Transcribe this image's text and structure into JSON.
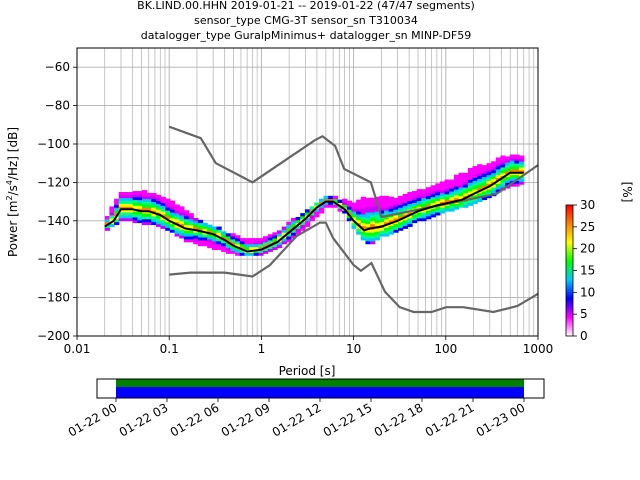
{
  "chart_data": {
    "type": "heatmap",
    "title_lines": [
      "BK.LIND.00.HHN   2019-01-21 -- 2019-01-22  (47/47 segments)",
      "sensor_type CMG-3T sensor_sn T310034",
      "datalogger_type GuralpMinimus+ datalogger_sn MINP-DF59"
    ],
    "xlabel": "Period [s]",
    "ylabel_parts": [
      "Power [m",
      "2",
      "/s",
      "4",
      "/Hz] [dB]"
    ],
    "xscale": "log",
    "xlim": [
      0.01,
      1000
    ],
    "ylim": [
      -200,
      -50
    ],
    "xtick_values": [
      0.01,
      0.1,
      1,
      10,
      100,
      1000
    ],
    "xtick_labels": [
      "0.01",
      "0.1",
      "1",
      "10",
      "100",
      "1000"
    ],
    "ytick_values": [
      -200,
      -180,
      -160,
      -140,
      -120,
      -100,
      -80,
      -60
    ],
    "ytick_labels": [
      "−200",
      "−180",
      "−160",
      "−140",
      "−120",
      "−100",
      "−80",
      "−60"
    ],
    "grid": true,
    "colorbar": {
      "label": "[%]",
      "range": [
        0,
        30
      ],
      "tick_values": [
        0,
        5,
        10,
        15,
        20,
        25,
        30
      ],
      "tick_labels": [
        "0",
        "5",
        "10",
        "15",
        "20",
        "25",
        "30"
      ],
      "colors": [
        "#ffffff",
        "#ff00ff",
        "#0000ff",
        "#00c8ff",
        "#00ff00",
        "#ffff00",
        "#ff8000",
        "#ff0000"
      ]
    },
    "high_noise_model": [
      [
        0.1,
        -91
      ],
      [
        0.22,
        -97
      ],
      [
        0.32,
        -110
      ],
      [
        0.8,
        -120
      ],
      [
        3.8,
        -98
      ],
      [
        4.6,
        -96
      ],
      [
        6.3,
        -101
      ],
      [
        7.9,
        -113
      ],
      [
        15.4,
        -120
      ],
      [
        20,
        -138
      ],
      [
        354.8,
        -126
      ],
      [
        1000,
        -111
      ]
    ],
    "low_noise_model": [
      [
        0.1,
        -168
      ],
      [
        0.17,
        -167
      ],
      [
        0.4,
        -167
      ],
      [
        0.8,
        -169
      ],
      [
        1.24,
        -163
      ],
      [
        2.4,
        -148
      ],
      [
        4.3,
        -141
      ],
      [
        5,
        -141
      ],
      [
        6,
        -149
      ],
      [
        10,
        -163
      ],
      [
        12,
        -166
      ],
      [
        15.6,
        -162
      ],
      [
        21.9,
        -177
      ],
      [
        31.6,
        -185
      ],
      [
        45,
        -187.5
      ],
      [
        70,
        -187.5
      ],
      [
        101,
        -185
      ],
      [
        154,
        -185
      ],
      [
        328,
        -187.5
      ],
      [
        600,
        -184.4
      ],
      [
        1000,
        -178
      ]
    ],
    "mode_curve": [
      [
        0.02,
        -143
      ],
      [
        0.025,
        -140
      ],
      [
        0.03,
        -134
      ],
      [
        0.04,
        -134
      ],
      [
        0.05,
        -135
      ],
      [
        0.06,
        -135
      ],
      [
        0.08,
        -137
      ],
      [
        0.1,
        -140
      ],
      [
        0.15,
        -144
      ],
      [
        0.2,
        -145
      ],
      [
        0.3,
        -147
      ],
      [
        0.4,
        -150
      ],
      [
        0.5,
        -153
      ],
      [
        0.7,
        -156
      ],
      [
        1.0,
        -155
      ],
      [
        1.5,
        -151
      ],
      [
        2,
        -146
      ],
      [
        3,
        -139
      ],
      [
        4,
        -133
      ],
      [
        5,
        -130
      ],
      [
        6,
        -130
      ],
      [
        8,
        -134
      ],
      [
        10,
        -140
      ],
      [
        13,
        -145
      ],
      [
        15,
        -144
      ],
      [
        20,
        -143
      ],
      [
        30,
        -140
      ],
      [
        50,
        -135
      ],
      [
        80,
        -132
      ],
      [
        100,
        -131
      ],
      [
        150,
        -129
      ],
      [
        200,
        -126
      ],
      [
        300,
        -122
      ],
      [
        400,
        -118
      ],
      [
        500,
        -115
      ],
      [
        700,
        -115
      ]
    ],
    "density_band": [
      [
        0.02,
        -145,
        -140
      ],
      [
        0.03,
        -140,
        -125
      ],
      [
        0.04,
        -140,
        -125
      ],
      [
        0.05,
        -141,
        -125
      ],
      [
        0.07,
        -142,
        -126
      ],
      [
        0.1,
        -145,
        -130
      ],
      [
        0.15,
        -150,
        -135
      ],
      [
        0.2,
        -152,
        -140
      ],
      [
        0.3,
        -154,
        -143
      ],
      [
        0.5,
        -157,
        -148
      ],
      [
        0.7,
        -158,
        -150
      ],
      [
        1.0,
        -157,
        -150
      ],
      [
        1.5,
        -154,
        -146
      ],
      [
        2,
        -150,
        -141
      ],
      [
        3,
        -143,
        -136
      ],
      [
        4,
        -137,
        -131
      ],
      [
        5,
        -133,
        -128
      ],
      [
        6,
        -132,
        -128
      ],
      [
        8,
        -136,
        -130
      ],
      [
        10,
        -143,
        -131
      ],
      [
        13,
        -150,
        -128
      ],
      [
        15,
        -152,
        -128
      ],
      [
        20,
        -148,
        -128
      ],
      [
        30,
        -145,
        -128
      ],
      [
        50,
        -140,
        -125
      ],
      [
        80,
        -137,
        -122
      ],
      [
        100,
        -135,
        -120
      ],
      [
        200,
        -131,
        -113
      ],
      [
        300,
        -127,
        -110
      ],
      [
        500,
        -122,
        -106
      ],
      [
        700,
        -120,
        -106
      ]
    ],
    "time_axis": {
      "tick_labels": [
        "01-22 00",
        "01-22 03",
        "01-22 06",
        "01-22 09",
        "01-22 12",
        "01-22 15",
        "01-22 18",
        "01-22 21",
        "01-23 00"
      ],
      "data_start_fraction": 0.0,
      "data_end_fraction": 1.0,
      "coverage_colors": [
        "#008000",
        "#0000ff"
      ]
    }
  }
}
